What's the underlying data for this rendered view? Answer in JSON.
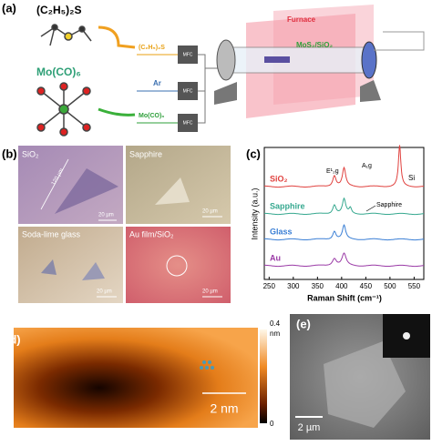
{
  "panel_a": {
    "label": "(a)",
    "precursor_s": "(C₂H₅)₂S",
    "precursor_mo": "Mo(CO)₆",
    "line_s": "(C₂H₅)₂S",
    "line_ar": "Ar",
    "line_mo": "Mo(CO)₆",
    "mfc": [
      "MFC",
      "MFC",
      "MFC"
    ],
    "furnace": "Furnace",
    "sample": "MoS₂/SiO₂"
  },
  "panel_b": {
    "label": "(b)",
    "images": [
      {
        "title": "SiO₂",
        "scale": "20 µm",
        "measure": "120 µm"
      },
      {
        "title": "Sapphire",
        "scale": "20 µm"
      },
      {
        "title": "Soda-lime glass",
        "scale": "20 µm"
      },
      {
        "title": "Au film/SiO₂",
        "scale": "20 µm"
      }
    ]
  },
  "chart_data": {
    "type": "line",
    "label": "(c)",
    "y_label": "Intensity (a.u.)",
    "x_label": "Raman Shift (cm⁻¹)",
    "xlim": [
      240,
      570
    ],
    "xticks": [
      250,
      300,
      350,
      400,
      450,
      500,
      550
    ],
    "annotations": [
      "E¹₂g",
      "A₁g",
      "Si",
      "Sapphire"
    ],
    "series": [
      {
        "name": "SiO₂",
        "color": "#e0413e"
      },
      {
        "name": "Sapphire",
        "color": "#36a88f"
      },
      {
        "name": "Glass",
        "color": "#3a7fd5"
      },
      {
        "name": "Au",
        "color": "#9a3aa6"
      }
    ]
  },
  "panel_d": {
    "label": "(d)",
    "colorbar_max": "0.4",
    "colorbar_unit": "nm",
    "colorbar_min": "0",
    "scale": "2 nm"
  },
  "panel_e": {
    "label": "(e)",
    "scale": "2 µm"
  }
}
